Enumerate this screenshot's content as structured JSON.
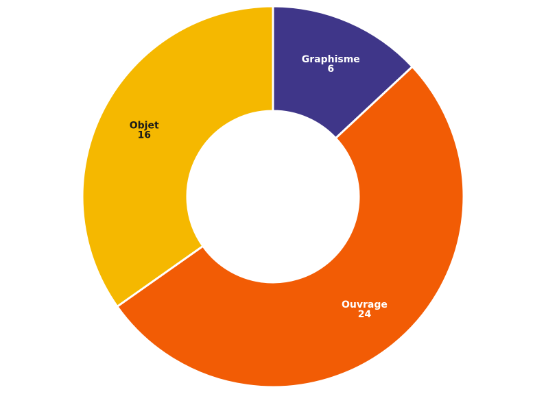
{
  "chart_data": {
    "type": "pie",
    "variant": "donut",
    "title": "",
    "slices": [
      {
        "label": "Graphisme",
        "value": 6,
        "color": "#3F3689",
        "text_color": "#ffffff"
      },
      {
        "label": "Ouvrage",
        "value": 24,
        "color": "#F25C05",
        "text_color": "#ffffff"
      },
      {
        "label": "Objet",
        "value": 16,
        "color": "#F5B800",
        "text_color": "#1a1a1a"
      }
    ],
    "legend": "none"
  }
}
